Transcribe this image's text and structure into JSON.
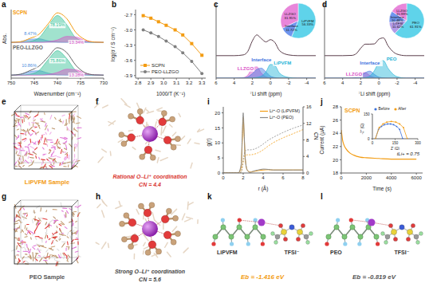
{
  "chart_data": [
    {
      "panel": "a",
      "type": "line",
      "x_label": "Wavenumber (cm⁻¹)",
      "y_label": "Abs.",
      "x": [
        750,
        748,
        746,
        744,
        742,
        740,
        738,
        736,
        734,
        732,
        730
      ],
      "xlim": [
        750,
        730
      ],
      "xticks": [
        750,
        745,
        740,
        735,
        730
      ],
      "ylim": [
        0,
        2.3
      ],
      "tick_labels": "x",
      "series": [
        {
          "name": "SCPN",
          "color": "#f39c12",
          "values": [
            1.2,
            1.22,
            1.33,
            1.47,
            1.82,
            2.19,
            2.0,
            1.53,
            1.29,
            1.21,
            1.2
          ],
          "components": [
            {
              "annotation": "8.47%",
              "color": "#4f8fe0",
              "values": [
                1.2,
                1.22,
                1.3,
                1.32,
                1.25,
                1.21,
                1.2,
                1.2,
                1.2,
                1.2,
                1.2
              ]
            },
            {
              "annotation": "78.19%",
              "color": "#2fbf93",
              "values": [
                1.2,
                1.2,
                1.23,
                1.35,
                1.75,
                2.1,
                1.8,
                1.35,
                1.23,
                1.2,
                1.2
              ]
            },
            {
              "annotation": "13.34%",
              "color": "#d94fc6",
              "values": [
                1.2,
                1.2,
                1.2,
                1.2,
                1.22,
                1.28,
                1.4,
                1.38,
                1.26,
                1.21,
                1.2
              ]
            }
          ]
        },
        {
          "name": "PEO-LLZGO",
          "color": "#666666",
          "values": [
            0.1,
            0.13,
            0.25,
            0.4,
            0.71,
            1.02,
            0.86,
            0.43,
            0.18,
            0.11,
            0.1
          ],
          "components": [
            {
              "annotation": "10.86%",
              "color": "#4f8fe0",
              "values": [
                0.1,
                0.13,
                0.22,
                0.25,
                0.17,
                0.11,
                0.1,
                0.1,
                0.1,
                0.1,
                0.1
              ]
            },
            {
              "annotation": "75.86%",
              "color": "#2fbf93",
              "values": [
                0.1,
                0.1,
                0.13,
                0.25,
                0.62,
                0.92,
                0.66,
                0.25,
                0.12,
                0.1,
                0.1
              ]
            },
            {
              "annotation": "13.28%",
              "color": "#d94fc6",
              "values": [
                0.1,
                0.1,
                0.1,
                0.1,
                0.12,
                0.19,
                0.3,
                0.28,
                0.16,
                0.11,
                0.1
              ]
            }
          ]
        }
      ]
    },
    {
      "panel": "b",
      "type": "line",
      "x_label": "1000/T (K⁻¹)",
      "y_label": "log(σ / S cm⁻¹)",
      "x": [
        2.84,
        2.9,
        2.96,
        3.02,
        3.09,
        3.15,
        3.22,
        3.3
      ],
      "xlim": [
        2.78,
        3.33
      ],
      "xticks": [
        2.8,
        2.9,
        {
          "value": 3,
          "label": "3.0"
        },
        3.1,
        3.2,
        3.3
      ],
      "ylim": [
        -3.95,
        -2.6
      ],
      "yticks": [
        -3.9,
        -3.6,
        -3.3,
        {
          "value": -3,
          "label": "-3.0"
        },
        -2.7
      ],
      "legend": "lower left",
      "series": [
        {
          "name": "SCPN",
          "color": "#f39c12",
          "marker": "square",
          "values": [
            -2.72,
            -2.77,
            -2.84,
            -2.91,
            -3.0,
            -3.1,
            -3.27,
            -3.5
          ]
        },
        {
          "name": "PEO-LLZGO",
          "color": "#7f7f7f",
          "marker": "circle",
          "values": [
            -3.0,
            -3.06,
            -3.13,
            -3.22,
            -3.33,
            -3.45,
            -3.62,
            -3.86
          ]
        }
      ]
    },
    {
      "panel": "c",
      "type": "line",
      "x_label": "⁷Li shift (ppm)",
      "x": [
        6,
        4,
        3,
        2.5,
        2,
        1.5,
        1,
        0.5,
        0,
        -0.5,
        -1,
        -2,
        -3,
        -5
      ],
      "xlim": [
        6,
        -5
      ],
      "xticks": [
        6,
        4,
        2,
        0,
        -2,
        -4
      ],
      "ylim": [
        0,
        3
      ],
      "tick_labels": "x",
      "spectrum": {
        "color": "#5a3d4a",
        "values": [
          0.9,
          0.9,
          0.93,
          1.07,
          1.49,
          1.73,
          1.58,
          1.45,
          1.54,
          1.42,
          1.1,
          0.93,
          0.9,
          0.9
        ]
      },
      "components": [
        {
          "name": "LLZGO",
          "color": "#d94fc6",
          "values": [
            0,
            0,
            0.02,
            0.12,
            0.4,
            0.45,
            0.2,
            0.05,
            0.01,
            0,
            0,
            0,
            0,
            0
          ]
        },
        {
          "name": "Interface",
          "color": "#3f73e0",
          "values": [
            0,
            0,
            0.01,
            0.05,
            0.18,
            0.35,
            0.4,
            0.25,
            0.08,
            0.02,
            0,
            0,
            0,
            0
          ]
        },
        {
          "name": "LiPVFM",
          "color": "#1fb3d6",
          "values": [
            0,
            0,
            0,
            0,
            0.01,
            0.03,
            0.08,
            0.25,
            0.55,
            0.5,
            0.2,
            0.03,
            0,
            0
          ]
        }
      ],
      "inset": {
        "type": "pie",
        "categories": [
          "LiPVFM",
          "Interface",
          "LLZGO"
        ],
        "values": [
          56.33,
          11.72,
          31.95
        ],
        "value_labels": [
          "56.33%",
          "11.72%",
          "31.95%"
        ],
        "colors": [
          "#5fd3ea",
          "#6f95ee",
          "#e886da"
        ]
      }
    },
    {
      "panel": "d",
      "type": "line",
      "x_label": "⁷Li shift (ppm)",
      "x": [
        6,
        4,
        3,
        2.5,
        2,
        1.5,
        1,
        0.5,
        0,
        -0.5,
        -1,
        -2,
        -3,
        -5
      ],
      "xlim": [
        6,
        -5
      ],
      "xticks": [
        6,
        4,
        2,
        0,
        -2,
        -4
      ],
      "ylim": [
        0,
        3
      ],
      "tick_labels": "x",
      "spectrum": {
        "color": "#5a3d4a",
        "values": [
          0.9,
          0.9,
          0.91,
          0.98,
          1.2,
          1.36,
          1.36,
          1.37,
          1.56,
          1.61,
          1.3,
          0.96,
          0.9,
          0.9
        ]
      },
      "components": [
        {
          "name": "LLZGO",
          "color": "#d94fc6",
          "values": [
            0,
            0,
            0.01,
            0.06,
            0.2,
            0.22,
            0.1,
            0.02,
            0,
            0,
            0,
            0,
            0,
            0
          ]
        },
        {
          "name": "Interface",
          "color": "#3f73e0",
          "values": [
            0,
            0,
            0,
            0.02,
            0.1,
            0.22,
            0.28,
            0.15,
            0.04,
            0.01,
            0,
            0,
            0,
            0
          ]
        },
        {
          "name": "PEO",
          "color": "#1fb3d6",
          "values": [
            0,
            0,
            0,
            0,
            0,
            0.02,
            0.08,
            0.3,
            0.62,
            0.7,
            0.4,
            0.06,
            0,
            0
          ]
        }
      ],
      "inset": {
        "type": "pie",
        "categories": [
          "PEO",
          "LiTFSI",
          "Interface",
          "LLZGO"
        ],
        "values": [
          61.91,
          11.62,
          10.48,
          15.99
        ],
        "value_labels": [
          "61.91%",
          "11.62%",
          "10.48%",
          "15.99%"
        ],
        "colors": [
          "#5fd3ea",
          "#b39be8",
          "#6f95ee",
          "#e886da"
        ]
      }
    },
    {
      "panel": "i",
      "type": "line",
      "x_label": "r (Å)",
      "y_label": "g(r)",
      "y2_label": "CN",
      "x": [
        0,
        1,
        1.5,
        1.8,
        1.9,
        2,
        2.1,
        2.2,
        2.4,
        2.7,
        3,
        3.5,
        4,
        4.5,
        5,
        6,
        7,
        8
      ],
      "xlim": [
        0,
        8
      ],
      "xticks": [
        0,
        2,
        4,
        6,
        8
      ],
      "ylim": [
        0,
        22
      ],
      "yticks": [
        0,
        5,
        10,
        15,
        20
      ],
      "y2lim": [
        0,
        16
      ],
      "y2ticks": [
        0,
        4,
        8,
        12,
        16
      ],
      "legend": "upper right",
      "series": [
        {
          "name": "Li⁺-O (LiPVFM)",
          "color": "#f39c12",
          "values": [
            0,
            0,
            0,
            2,
            10,
            18.5,
            12,
            5,
            1,
            0.3,
            0.5,
            0.8,
            1,
            1.1,
            1,
            1,
            1,
            1
          ],
          "cn_values": [
            0,
            0,
            0,
            0.2,
            1.2,
            2.6,
            3.6,
            4.2,
            4.4,
            4.4,
            4.5,
            4.9,
            5.6,
            6.5,
            7.3,
            8.5,
            9.5,
            10.5
          ]
        },
        {
          "name": "Li⁺-O (PEO)",
          "color": "#8a8a8a",
          "values": [
            0,
            0,
            0,
            3,
            12,
            20,
            13,
            5,
            1,
            0.2,
            0.6,
            1,
            1.3,
            1.2,
            1,
            1,
            1,
            1
          ],
          "cn_values": [
            0,
            0,
            0,
            0.3,
            1.5,
            3.2,
            4.6,
            5.3,
            5.6,
            5.6,
            5.7,
            6.2,
            7,
            7.9,
            8.6,
            9.8,
            10.8,
            11.6
          ]
        }
      ]
    },
    {
      "panel": "j",
      "type": "line",
      "title": "SCPN",
      "x_label": "Time (s)",
      "y_label": "Current (μA)",
      "x": [
        0,
        100,
        200,
        400,
        700,
        1000,
        1500,
        2000,
        3000,
        4000,
        5000,
        6000
      ],
      "xlim": [
        0,
        6500
      ],
      "xticks": [
        0,
        2000,
        4000,
        6000
      ],
      "ylim": [
        18,
        28
      ],
      "yticks": [
        18,
        20,
        22,
        24,
        26,
        28
      ],
      "series": [
        {
          "color": "#f39c12",
          "values": [
            24.5,
            23.0,
            22.3,
            21.6,
            21.0,
            20.7,
            20.4,
            20.3,
            20.2,
            20.1,
            20.1,
            20.1
          ],
          "annotation": "tLi+ = 0.75"
        }
      ],
      "inset": {
        "type": "line",
        "x_label": "Z' (Ω)",
        "y_label": "-Z'' (Ω)",
        "xlim": [
          0,
          300
        ],
        "xticks": [
          0,
          150,
          300
        ],
        "ylim": [
          0,
          150
        ],
        "yticks": [
          0,
          150
        ],
        "legend": "upper left",
        "series": [
          {
            "name": "Before",
            "color": "#3a6fd8",
            "x": [
              20,
              40,
              60,
              80,
              100,
              120,
              140,
              160,
              180,
              200
            ],
            "values": [
              0,
              56.6,
              74.8,
              85,
              89.4,
              89.4,
              85,
              74.8,
              56.6,
              0
            ]
          },
          {
            "name": "After",
            "color": "#f39c12",
            "x": [
              20,
              45,
              70,
              95,
              125,
              155,
              180,
              205,
              230
            ],
            "values": [
              0,
              68,
              89.4,
              100.6,
              105,
              100.6,
              89.4,
              68,
              0
            ]
          }
        ]
      }
    }
  ],
  "diagrams": [
    {
      "panel": "e",
      "label": "LiPVFM Sample"
    },
    {
      "panel": "f",
      "caption": "Rational O–Li⁺ coordination",
      "cn": "CN = 4.4"
    },
    {
      "panel": "g",
      "label": "PEO Sample"
    },
    {
      "panel": "h",
      "caption": "Strong O–Li⁺ coordination",
      "cn": "CN = 5.6"
    },
    {
      "panel": "k",
      "molecules": [
        "LiPVFM",
        "TFSI⁻"
      ],
      "energy": "Eb = -1.416 eV"
    },
    {
      "panel": "l",
      "molecules": [
        "PEO",
        "TFSI⁻"
      ],
      "energy": "Eb = -0.819 eV"
    }
  ]
}
